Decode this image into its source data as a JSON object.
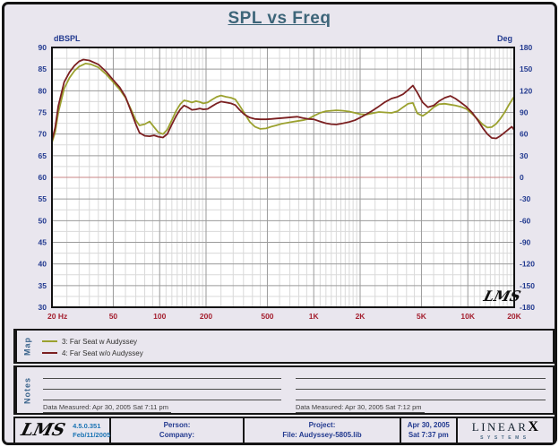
{
  "title": "SPL vs Freq",
  "chart_data": {
    "type": "line",
    "title": "SPL vs Freq",
    "x_axis": {
      "label": "Hz",
      "scale": "log",
      "min": 20,
      "max": 20000,
      "ticks": [
        20,
        50,
        100,
        200,
        500,
        1000,
        2000,
        5000,
        10000,
        20000
      ],
      "tick_labels": [
        "20 Hz",
        "50",
        "100",
        "200",
        "500",
        "1K",
        "2K",
        "5K",
        "10K",
        "20K"
      ]
    },
    "y_axis_left": {
      "label": "dBSPL",
      "min": 30,
      "max": 90,
      "step": 5
    },
    "y_axis_right": {
      "label": "Deg",
      "min": -180,
      "max": 180,
      "step": 30
    },
    "grid": "on",
    "zero_deg_line_db": 60,
    "watermark": "LMS",
    "series": [
      {
        "name": "3: Far Seat w Audyssey",
        "color": "#9ba12f",
        "points": [
          [
            20,
            68
          ],
          [
            21,
            70.5
          ],
          [
            22,
            75
          ],
          [
            24,
            80.5
          ],
          [
            26,
            83
          ],
          [
            28,
            84.6
          ],
          [
            30,
            85.6
          ],
          [
            33,
            86.3
          ],
          [
            36,
            86.1
          ],
          [
            40,
            85.4
          ],
          [
            45,
            83.8
          ],
          [
            50,
            82
          ],
          [
            55,
            80.3
          ],
          [
            60,
            78.4
          ],
          [
            65,
            75.8
          ],
          [
            70,
            73.2
          ],
          [
            74,
            72
          ],
          [
            80,
            72.3
          ],
          [
            86,
            72.9
          ],
          [
            92,
            71.6
          ],
          [
            98,
            70.4
          ],
          [
            105,
            70
          ],
          [
            112,
            71
          ],
          [
            120,
            73.2
          ],
          [
            128,
            75.4
          ],
          [
            136,
            76.9
          ],
          [
            144,
            77.8
          ],
          [
            152,
            77.6
          ],
          [
            162,
            77.3
          ],
          [
            172,
            77.6
          ],
          [
            182,
            77.4
          ],
          [
            192,
            77.1
          ],
          [
            205,
            77.3
          ],
          [
            220,
            78
          ],
          [
            235,
            78.6
          ],
          [
            250,
            78.9
          ],
          [
            270,
            78.6
          ],
          [
            290,
            78.4
          ],
          [
            310,
            78
          ],
          [
            330,
            76.6
          ],
          [
            355,
            74.8
          ],
          [
            385,
            72.8
          ],
          [
            415,
            71.7
          ],
          [
            450,
            71.2
          ],
          [
            490,
            71.3
          ],
          [
            530,
            71.7
          ],
          [
            570,
            72
          ],
          [
            620,
            72.4
          ],
          [
            670,
            72.6
          ],
          [
            720,
            72.8
          ],
          [
            780,
            73
          ],
          [
            850,
            73.2
          ],
          [
            920,
            73.5
          ],
          [
            1000,
            74.2
          ],
          [
            1100,
            74.9
          ],
          [
            1200,
            75.3
          ],
          [
            1300,
            75.4
          ],
          [
            1400,
            75.5
          ],
          [
            1550,
            75.4
          ],
          [
            1700,
            75.2
          ],
          [
            1850,
            74.9
          ],
          [
            2000,
            74.6
          ],
          [
            2200,
            74.5
          ],
          [
            2400,
            74.8
          ],
          [
            2650,
            75.1
          ],
          [
            2900,
            75
          ],
          [
            3200,
            74.9
          ],
          [
            3500,
            75.3
          ],
          [
            3800,
            76.2
          ],
          [
            4100,
            77
          ],
          [
            4400,
            77.2
          ],
          [
            4700,
            74.8
          ],
          [
            5100,
            74.2
          ],
          [
            5500,
            75
          ],
          [
            6000,
            76.2
          ],
          [
            6500,
            76.9
          ],
          [
            7100,
            77
          ],
          [
            7700,
            76.8
          ],
          [
            8300,
            76.6
          ],
          [
            9000,
            76.3
          ],
          [
            9800,
            75.8
          ],
          [
            10700,
            74.6
          ],
          [
            11600,
            73.4
          ],
          [
            12500,
            72.2
          ],
          [
            13400,
            71.5
          ],
          [
            14300,
            71.6
          ],
          [
            15300,
            72.4
          ],
          [
            16300,
            73.6
          ],
          [
            17400,
            75.1
          ],
          [
            18500,
            76.8
          ],
          [
            19300,
            77.8
          ],
          [
            20000,
            78.7
          ]
        ]
      },
      {
        "name": "4: Far Seat w/o Audyssey",
        "color": "#7b2021",
        "points": [
          [
            20,
            68.5
          ],
          [
            21,
            71.5
          ],
          [
            22,
            76.5
          ],
          [
            24,
            82
          ],
          [
            26,
            84.3
          ],
          [
            28,
            85.8
          ],
          [
            30,
            86.8
          ],
          [
            32,
            87.2
          ],
          [
            35,
            87
          ],
          [
            40,
            86.1
          ],
          [
            45,
            84.4
          ],
          [
            50,
            82.5
          ],
          [
            55,
            80.8
          ],
          [
            60,
            78.6
          ],
          [
            65,
            75.4
          ],
          [
            70,
            72.3
          ],
          [
            74,
            70.3
          ],
          [
            80,
            69.6
          ],
          [
            86,
            69.5
          ],
          [
            92,
            69.7
          ],
          [
            98,
            69.4
          ],
          [
            105,
            69.2
          ],
          [
            112,
            70
          ],
          [
            120,
            72.2
          ],
          [
            128,
            74.2
          ],
          [
            136,
            75.7
          ],
          [
            144,
            76.6
          ],
          [
            152,
            76.2
          ],
          [
            162,
            75.6
          ],
          [
            172,
            75.7
          ],
          [
            182,
            75.9
          ],
          [
            192,
            75.7
          ],
          [
            205,
            75.8
          ],
          [
            220,
            76.5
          ],
          [
            235,
            77.1
          ],
          [
            250,
            77.5
          ],
          [
            270,
            77.3
          ],
          [
            290,
            77.1
          ],
          [
            310,
            76.7
          ],
          [
            330,
            75.6
          ],
          [
            355,
            74.5
          ],
          [
            385,
            73.8
          ],
          [
            415,
            73.5
          ],
          [
            450,
            73.4
          ],
          [
            490,
            73.4
          ],
          [
            530,
            73.5
          ],
          [
            570,
            73.6
          ],
          [
            620,
            73.7
          ],
          [
            670,
            73.8
          ],
          [
            720,
            73.9
          ],
          [
            780,
            74
          ],
          [
            850,
            73.7
          ],
          [
            920,
            73.5
          ],
          [
            1000,
            73.4
          ],
          [
            1100,
            72.9
          ],
          [
            1200,
            72.5
          ],
          [
            1300,
            72.3
          ],
          [
            1400,
            72.2
          ],
          [
            1550,
            72.5
          ],
          [
            1700,
            72.8
          ],
          [
            1850,
            73.2
          ],
          [
            2000,
            73.8
          ],
          [
            2200,
            74.6
          ],
          [
            2400,
            75.4
          ],
          [
            2650,
            76.4
          ],
          [
            2900,
            77.4
          ],
          [
            3200,
            78.2
          ],
          [
            3500,
            78.6
          ],
          [
            3800,
            79.2
          ],
          [
            4100,
            80.2
          ],
          [
            4400,
            81.2
          ],
          [
            4700,
            79.6
          ],
          [
            5100,
            77.3
          ],
          [
            5500,
            76.2
          ],
          [
            6000,
            76.6
          ],
          [
            6500,
            77.6
          ],
          [
            7100,
            78.4
          ],
          [
            7700,
            78.8
          ],
          [
            8300,
            78.2
          ],
          [
            9000,
            77.3
          ],
          [
            9800,
            76.3
          ],
          [
            10700,
            74.9
          ],
          [
            11600,
            73.2
          ],
          [
            12500,
            71.4
          ],
          [
            13400,
            70
          ],
          [
            14300,
            69.1
          ],
          [
            15300,
            69
          ],
          [
            16300,
            69.6
          ],
          [
            17400,
            70.4
          ],
          [
            18500,
            71.2
          ],
          [
            19300,
            71.7
          ],
          [
            20000,
            70.9
          ]
        ]
      }
    ]
  },
  "map_panel": {
    "label": "Map",
    "items": [
      {
        "label": "3: Far Seat w Audyssey",
        "color": "#9ba12f"
      },
      {
        "label": "4: Far Seat w/o Audyssey",
        "color": "#7b2021"
      }
    ]
  },
  "notes_panel": {
    "label": "Notes",
    "measured_left": "Data Measured: Apr 30, 2005  Sat  7:11 pm",
    "measured_right": "Data Measured: Apr 30, 2005  Sat  7:12 pm"
  },
  "footer": {
    "lms_logo": "LMS",
    "version": "4.5.0.351",
    "version_date": "Feb/11/2005",
    "person_label": "Person:",
    "company_label": "Company:",
    "project_label": "Project:",
    "file_label": "File: Audyssey-5805.lib",
    "date": "Apr 30, 2005",
    "time": "Sat  7:37 pm",
    "brand": "LINEAR",
    "brand_x": "X",
    "brand_sub": "SYSTEMS"
  },
  "colors": {
    "background": "#e9e6ee",
    "frame_border": "#151515",
    "plot_bg": "#ffffff",
    "grid_major": "#9a9a9a",
    "grid_minor": "#d9d9d9",
    "zero_line": "#c98585",
    "axis_label_blue": "#21398f",
    "freq_label_red": "#a41f2f",
    "title_color": "#3d6579",
    "panel_label_blue": "#3a648c"
  }
}
